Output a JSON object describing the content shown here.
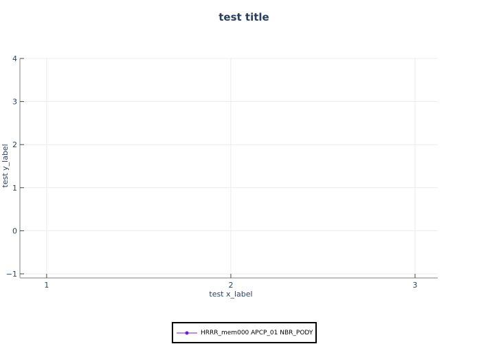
{
  "chart_data": {
    "type": "line",
    "title": "test title",
    "xlabel": "test x_label",
    "ylabel": "test y_label",
    "xlim": [
      0.855,
      3.123
    ],
    "ylim": [
      -1.096,
      4
    ],
    "xticks": [
      1,
      2,
      3
    ],
    "yticks": [
      -1,
      0,
      1,
      2,
      3,
      4
    ],
    "ytick_labels": [
      "−1",
      "0",
      "1",
      "2",
      "3",
      "4"
    ],
    "grid": true,
    "legend_position": "bottom-center",
    "series": [
      {
        "name": "HRRR_mem000 APCP_01 NBR_PODY",
        "color": "#7014eb",
        "x": [],
        "y": []
      }
    ]
  }
}
